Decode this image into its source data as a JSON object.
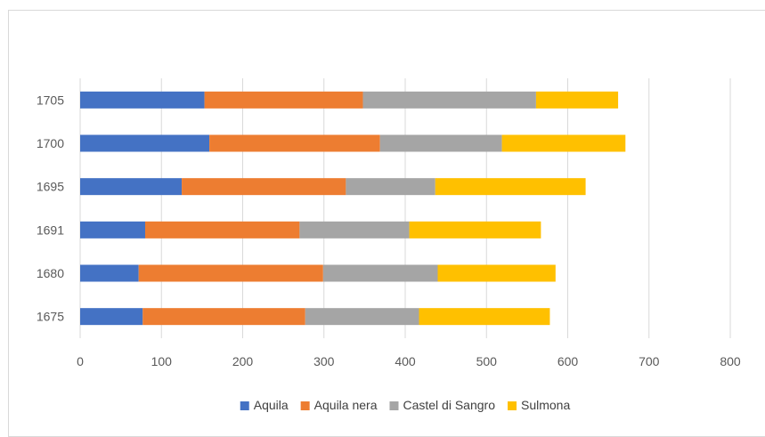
{
  "chart_data": {
    "type": "bar",
    "orientation": "horizontal",
    "stacked": true,
    "categories": [
      "1675",
      "1680",
      "1691",
      "1695",
      "1700",
      "1705"
    ],
    "series": [
      {
        "name": "Aquila",
        "color": "#4472C4",
        "values": [
          77,
          72,
          80,
          125,
          159,
          153
        ]
      },
      {
        "name": "Aquila nera",
        "color": "#ED7D31",
        "values": [
          200,
          227,
          190,
          202,
          210,
          195
        ]
      },
      {
        "name": "Castel di Sangro",
        "color": "#A5A5A5",
        "values": [
          140,
          141,
          135,
          110,
          150,
          213
        ]
      },
      {
        "name": "Sulmona",
        "color": "#FFC000",
        "values": [
          161,
          145,
          162,
          185,
          152,
          101
        ]
      }
    ],
    "xlim": [
      0,
      800
    ],
    "xticks": [
      0,
      100,
      200,
      300,
      400,
      500,
      600,
      700,
      800
    ],
    "grid": true,
    "legend": "bottom"
  }
}
